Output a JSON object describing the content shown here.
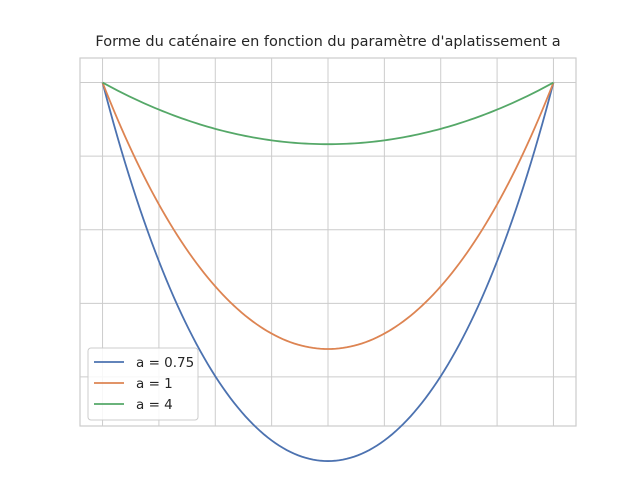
{
  "chart_data": {
    "type": "line",
    "title": "Forme du caténaire en fonction du paramètre d'aplatissement a",
    "xlabel": "",
    "ylabel": "",
    "xlim": [
      -1.1,
      1.1
    ],
    "ylim": [
      -0.7,
      0.05
    ],
    "grid": true,
    "legend": "lower-left",
    "x_range": [
      -1,
      1
    ],
    "series": [
      {
        "name": "a = 0.75",
        "a": 0.75,
        "color": "#4c72b0"
      },
      {
        "name": "a = 1",
        "a": 1,
        "color": "#dd8452"
      },
      {
        "name": "a = 4",
        "a": 4,
        "color": "#55a868"
      }
    ]
  }
}
